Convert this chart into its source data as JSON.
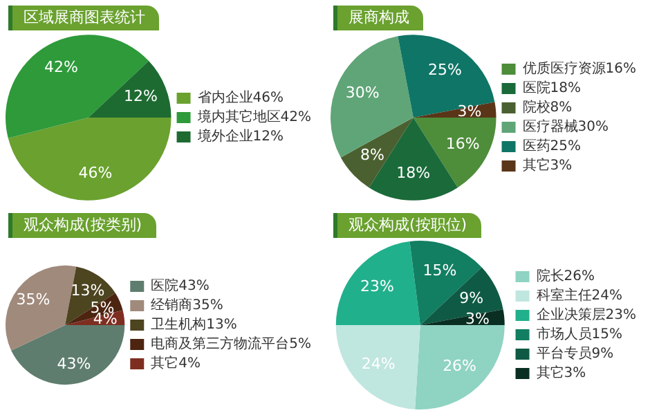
{
  "chart_data": [
    {
      "type": "pie",
      "title": "区域展商图表统计",
      "legend": "right",
      "categories": [
        "省内企业46%",
        "境内其它地区42%",
        "境外企业12%"
      ],
      "values": [
        46,
        42,
        12
      ],
      "value_labels": [
        "46%",
        "42%",
        "12%"
      ],
      "colors": [
        "#6aa12f",
        "#2e9a3a",
        "#1e6b32"
      ]
    },
    {
      "type": "pie",
      "title": "展商构成",
      "legend": "right",
      "categories": [
        "优质医疗资源16%",
        "医院18%",
        "院校8%",
        "医疗器械30%",
        "医药25%",
        "其它3%"
      ],
      "values": [
        16,
        18,
        8,
        30,
        25,
        3
      ],
      "value_labels": [
        "16%",
        "18%",
        "8%",
        "30%",
        "25%",
        "3%"
      ],
      "colors": [
        "#4e8d3a",
        "#1a6a3a",
        "#4b6030",
        "#5fa577",
        "#0f7566",
        "#5a3518"
      ]
    },
    {
      "type": "pie",
      "title": "观众构成(按类别)",
      "legend": "right",
      "categories": [
        "医院43%",
        "经销商35%",
        "卫生机构13%",
        "电商及第三方物流平台5%",
        "其它4%"
      ],
      "values": [
        43,
        35,
        13,
        5,
        4
      ],
      "value_labels": [
        "43%",
        "35%",
        "13%",
        "5%",
        "4%"
      ],
      "colors": [
        "#5e7d6e",
        "#a08a7c",
        "#4d4420",
        "#4c2410",
        "#7e2e20"
      ]
    },
    {
      "type": "pie",
      "title": "观众构成(按职位)",
      "legend": "right",
      "categories": [
        "院长26%",
        "科室主任24%",
        "企业决策层23%",
        "市场人员15%",
        "平台专员9%",
        "其它3%"
      ],
      "values": [
        26,
        24,
        23,
        15,
        9,
        3
      ],
      "value_labels": [
        "26%",
        "24%",
        "23%",
        "15%",
        "9%",
        "3%"
      ],
      "colors": [
        "#8fd3c2",
        "#bfe6df",
        "#20b08c",
        "#127e62",
        "#0f5a44",
        "#0a2e22"
      ]
    }
  ]
}
